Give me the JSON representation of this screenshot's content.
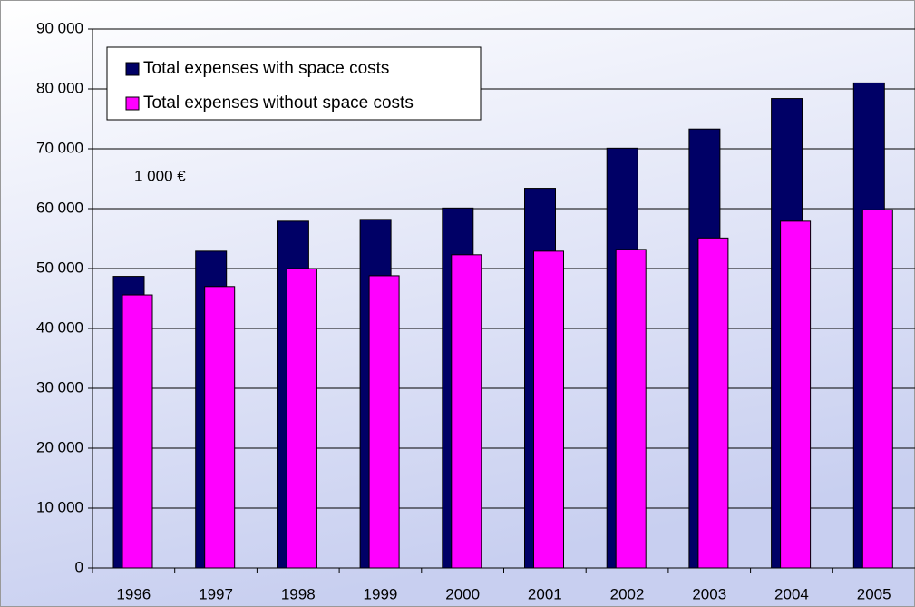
{
  "chart_data": {
    "type": "bar",
    "annotation": "1 000 €",
    "categories": [
      "1996",
      "1997",
      "1998",
      "1999",
      "2000",
      "2001",
      "2002",
      "2003",
      "2004",
      "2005"
    ],
    "series": [
      {
        "name": "Total expenses with space costs",
        "color": "#000066",
        "values": [
          48700,
          52900,
          57900,
          58200,
          60100,
          63400,
          70100,
          73300,
          78400,
          81000
        ]
      },
      {
        "name": "Total expenses without space costs",
        "color": "#ff00ff",
        "values": [
          45600,
          47000,
          50000,
          48800,
          52300,
          52900,
          53200,
          55100,
          57900,
          59800
        ]
      }
    ],
    "ylim": [
      0,
      90000
    ],
    "yticks": [
      0,
      {
        "value": 10000,
        "label": "10 000"
      },
      {
        "value": 20000,
        "label": "20 000"
      },
      {
        "value": 30000,
        "label": "30 000"
      },
      {
        "value": 40000,
        "label": "40 000"
      },
      {
        "value": 50000,
        "label": "50 000"
      },
      {
        "value": 60000,
        "label": "60 000"
      },
      {
        "value": 70000,
        "label": "70 000"
      },
      {
        "value": 80000,
        "label": "80 000"
      },
      {
        "value": 90000,
        "label": "90 000"
      }
    ],
    "grid": true,
    "legend": "upper left"
  }
}
